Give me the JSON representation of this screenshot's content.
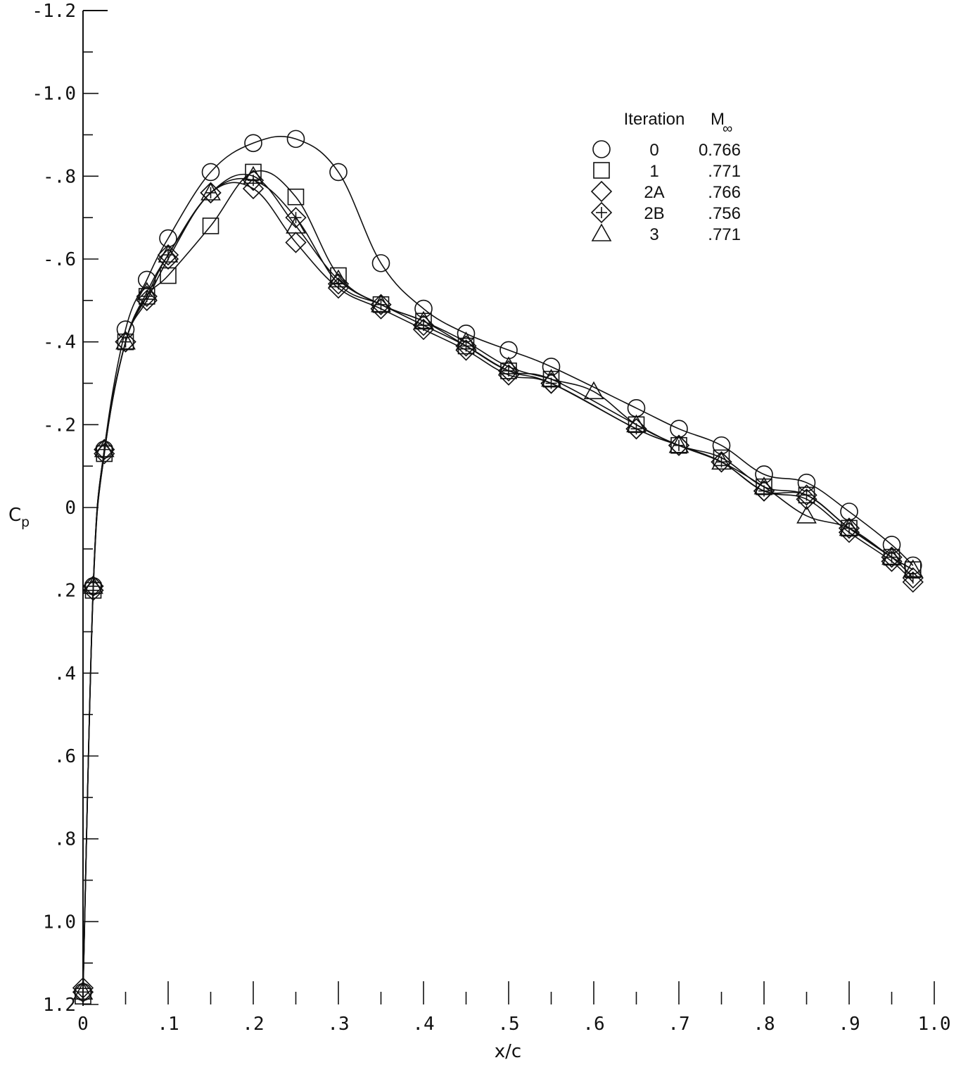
{
  "chart_data": {
    "type": "scatter",
    "xlabel": "x/c",
    "ylabel": "Cp",
    "xlim": [
      0,
      1.0
    ],
    "ylim": [
      -1.2,
      1.2
    ],
    "y_axis_inverted": true,
    "grid": false,
    "legend_position": "top-right",
    "x_ticks": [
      0,
      0.1,
      0.2,
      0.3,
      0.4,
      0.5,
      0.6,
      0.7,
      0.8,
      0.9,
      1.0
    ],
    "x_tick_labels": [
      "0",
      ".1",
      ".2",
      ".3",
      ".4",
      ".5",
      ".6",
      ".7",
      ".8",
      ".9",
      "1.0"
    ],
    "y_ticks": [
      -1.2,
      -1.0,
      -0.8,
      -0.6,
      -0.4,
      -0.2,
      0,
      0.2,
      0.4,
      0.6,
      0.8,
      1.0,
      1.2
    ],
    "y_tick_labels": [
      "-1.2",
      "-1.0",
      "-.8",
      "-.6",
      "-.4",
      "-.2",
      "0",
      ".2",
      ".4",
      ".6",
      ".8",
      "1.0",
      "1.2"
    ],
    "legend_headers": {
      "iteration": "Iteration",
      "mach_symbol": "M",
      "mach_subscript": "∞"
    },
    "series": [
      {
        "name": "0",
        "mach": "0.766",
        "marker": "circle",
        "x": [
          0,
          0.012,
          0.025,
          0.05,
          0.075,
          0.1,
          0.15,
          0.2,
          0.25,
          0.3,
          0.35,
          0.4,
          0.45,
          0.5,
          0.55,
          0.6,
          0.65,
          0.7,
          0.75,
          0.8,
          0.85,
          0.9,
          0.95,
          0.975
        ],
        "y": [
          1.17,
          0.19,
          -0.14,
          -0.43,
          -0.55,
          -0.65,
          -0.81,
          -0.88,
          -0.89,
          -0.81,
          -0.59,
          -0.48,
          -0.42,
          -0.38,
          -0.34,
          null,
          -0.24,
          -0.19,
          -0.15,
          -0.08,
          -0.06,
          0.01,
          0.09,
          0.14
        ]
      },
      {
        "name": "1",
        "mach": ".771",
        "marker": "square",
        "x": [
          0,
          0.012,
          0.025,
          0.05,
          0.075,
          0.1,
          0.15,
          0.2,
          0.25,
          0.3,
          0.35,
          0.4,
          0.45,
          0.5,
          0.55,
          0.6,
          0.65,
          0.7,
          0.75,
          0.8,
          0.85,
          0.9,
          0.95,
          0.975
        ],
        "y": [
          1.18,
          0.2,
          -0.13,
          -0.4,
          -0.51,
          -0.56,
          -0.68,
          -0.81,
          -0.75,
          -0.56,
          -0.49,
          -0.45,
          -0.39,
          -0.33,
          -0.31,
          null,
          -0.2,
          -0.15,
          -0.12,
          -0.05,
          -0.03,
          0.05,
          0.12,
          0.15
        ]
      },
      {
        "name": "2A",
        "mach": ".766",
        "marker": "diamond",
        "x": [
          0,
          0.012,
          0.025,
          0.05,
          0.075,
          0.1,
          0.15,
          0.2,
          0.25,
          0.3,
          0.35,
          0.4,
          0.45,
          0.5,
          0.55,
          0.6,
          0.65,
          0.7,
          0.75,
          0.8,
          0.85,
          0.9,
          0.95,
          0.975
        ],
        "y": [
          1.16,
          0.2,
          -0.13,
          -0.4,
          -0.5,
          -0.6,
          -0.76,
          -0.77,
          -0.64,
          -0.53,
          -0.48,
          -0.43,
          -0.38,
          -0.32,
          -0.3,
          null,
          -0.19,
          -0.15,
          -0.11,
          -0.04,
          -0.02,
          0.06,
          0.13,
          0.18
        ]
      },
      {
        "name": "2B",
        "mach": ".756",
        "marker": "diamond-plus",
        "x": [
          0,
          0.012,
          0.025,
          0.05,
          0.075,
          0.1,
          0.15,
          0.2,
          0.25,
          0.3,
          0.35,
          0.4,
          0.45,
          0.5,
          0.55,
          0.6,
          0.65,
          0.7,
          0.75,
          0.8,
          0.85,
          0.9,
          0.95,
          0.975
        ],
        "y": [
          1.17,
          0.19,
          -0.14,
          -0.4,
          -0.51,
          -0.61,
          -0.76,
          -0.79,
          -0.7,
          -0.54,
          -0.49,
          -0.44,
          -0.39,
          -0.33,
          -0.3,
          null,
          -0.19,
          -0.15,
          -0.11,
          -0.04,
          -0.03,
          0.05,
          0.12,
          0.17
        ]
      },
      {
        "name": "3",
        "mach": ".771",
        "marker": "triangle",
        "x": [
          0,
          0.012,
          0.025,
          0.05,
          0.075,
          0.1,
          0.15,
          0.2,
          0.25,
          0.3,
          0.35,
          0.4,
          0.45,
          0.5,
          0.55,
          0.6,
          0.65,
          0.7,
          0.75,
          0.8,
          0.85,
          0.9,
          0.95,
          0.975
        ],
        "y": [
          1.17,
          0.19,
          -0.14,
          -0.4,
          -0.52,
          -0.61,
          -0.76,
          -0.8,
          -0.68,
          -0.55,
          -0.49,
          -0.45,
          -0.4,
          -0.34,
          -0.31,
          -0.28,
          -0.2,
          -0.15,
          -0.11,
          -0.05,
          0.02,
          0.05,
          0.12,
          0.15
        ]
      }
    ]
  }
}
